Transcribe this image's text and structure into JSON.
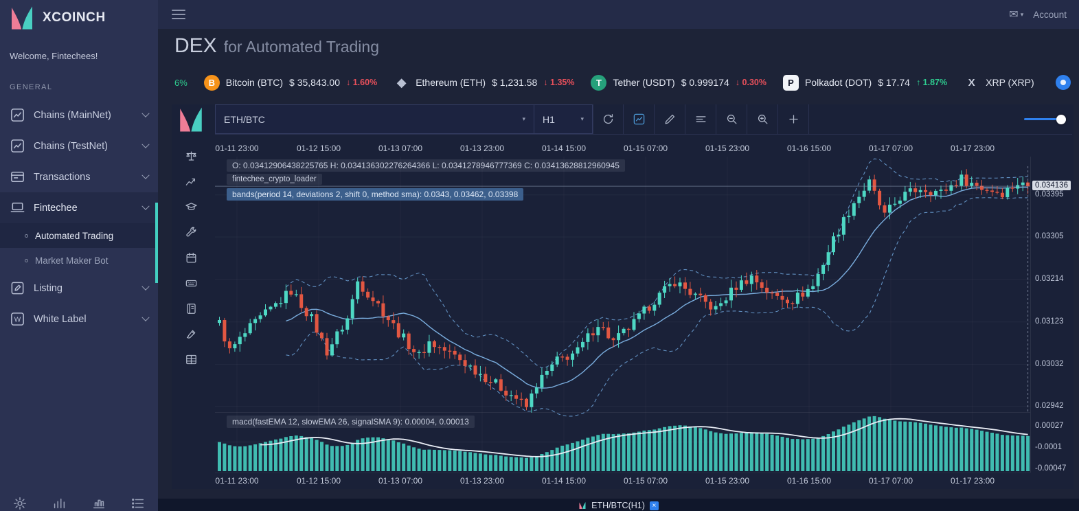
{
  "brand": {
    "name": "XCOINCH",
    "welcome": "Welcome, Fintechees!"
  },
  "topbar": {
    "account_label": "Account"
  },
  "sidebar": {
    "section_label": "GENERAL",
    "items": [
      {
        "label": "Chains (MainNet)",
        "icon": "chart-line-icon",
        "expandable": true
      },
      {
        "label": "Chains (TestNet)",
        "icon": "chart-line-icon",
        "expandable": true
      },
      {
        "label": "Transactions",
        "icon": "card-icon",
        "expandable": true
      },
      {
        "label": "Fintechee",
        "icon": "laptop-icon",
        "expandable": true,
        "active": true,
        "children": [
          {
            "label": "Automated Trading",
            "active": true
          },
          {
            "label": "Market Maker Bot"
          }
        ]
      },
      {
        "label": "Listing",
        "icon": "compose-icon",
        "expandable": true
      },
      {
        "label": "White Label",
        "icon": "w-icon",
        "expandable": true
      }
    ],
    "footer_icons": [
      "gear-icon",
      "signal-bars-icon",
      "chart-columns-icon",
      "list-icon"
    ]
  },
  "page": {
    "title_primary": "DEX",
    "title_secondary": "for Automated Trading"
  },
  "ticker": {
    "lead_change": "6%",
    "items": [
      {
        "symbol": "BTC",
        "name": "Bitcoin (BTC)",
        "price": "$ 35,843.00",
        "change": "1.60%",
        "direction": "down"
      },
      {
        "symbol": "ETH",
        "name": "Ethereum (ETH)",
        "price": "$ 1,231.58",
        "change": "1.35%",
        "direction": "down"
      },
      {
        "symbol": "USDT",
        "name": "Tether (USDT)",
        "price": "$ 0.999174",
        "change": "0.30%",
        "direction": "down"
      },
      {
        "symbol": "DOT",
        "name": "Polkadot (DOT)",
        "price": "$ 17.74",
        "change": "1.87%",
        "direction": "up"
      },
      {
        "symbol": "XRP",
        "name": "XRP (XRP)",
        "price": "",
        "change": "",
        "direction": "none"
      }
    ]
  },
  "chart_toolbar": {
    "symbol_select": "ETH/BTC",
    "timeframe_select": "H1",
    "buttons": [
      {
        "icon": "refresh-icon"
      },
      {
        "icon": "chart-line-icon",
        "active": true
      },
      {
        "icon": "pencil-icon"
      },
      {
        "icon": "indicator-lines-icon"
      },
      {
        "icon": "zoom-out-icon"
      },
      {
        "icon": "zoom-in-icon"
      },
      {
        "icon": "plus-icon"
      }
    ]
  },
  "side_tools": [
    "balance-scale-icon",
    "trend-icon",
    "graduation-cap-icon",
    "wrench-icon",
    "calendar-icon",
    "keyboard-icon",
    "journal-icon",
    "brush-icon",
    "table-icon"
  ],
  "chart_overlays": {
    "ohlc": "O: 0.03412906438225765 H: 0.034136302276264366 L: 0.0341278946777369 C: 0.03413628812960945",
    "loader": "fintechee_crypto_loader",
    "bands": "bands(period 14, deviations 2, shift 0, method sma): 0.0343, 0.03462, 0.03398",
    "macd": "macd(fastEMA 12, slowEMA 26, signalSMA 9): 0.00004, 0.00013"
  },
  "chart_data": {
    "type": "candlestick",
    "symbol": "ETH/BTC",
    "timeframe": "H1",
    "x_labels": [
      "01-11 23:00",
      "01-12 15:00",
      "01-13 07:00",
      "01-13 23:00",
      "01-14 15:00",
      "01-15 07:00",
      "01-15 23:00",
      "01-16 15:00",
      "01-17 07:00",
      "01-17 23:00"
    ],
    "y_ticks": [
      "0.03395",
      "0.03305",
      "0.03214",
      "0.03123",
      "0.03032",
      "0.02942"
    ],
    "macd_ticks": [
      "0.00027",
      "-0.0001",
      "-0.00047"
    ],
    "current_price": "0.034136",
    "num_candles": 159,
    "close_anchors": [
      [
        0,
        0.0312
      ],
      [
        2,
        0.0306
      ],
      [
        6,
        0.0311
      ],
      [
        11,
        0.0316
      ],
      [
        14,
        0.0319
      ],
      [
        18,
        0.0313
      ],
      [
        21,
        0.0306
      ],
      [
        25,
        0.0313
      ],
      [
        27,
        0.0321
      ],
      [
        31,
        0.0316
      ],
      [
        35,
        0.031
      ],
      [
        39,
        0.0305
      ],
      [
        41,
        0.0308
      ],
      [
        46,
        0.0305
      ],
      [
        50,
        0.0302
      ],
      [
        54,
        0.0299
      ],
      [
        58,
        0.0296
      ],
      [
        60,
        0.0294
      ],
      [
        62,
        0.0299
      ],
      [
        66,
        0.0304
      ],
      [
        70,
        0.0306
      ],
      [
        74,
        0.0312
      ],
      [
        77,
        0.0308
      ],
      [
        81,
        0.0312
      ],
      [
        85,
        0.0317
      ],
      [
        89,
        0.0321
      ],
      [
        94,
        0.0317
      ],
      [
        97,
        0.0315
      ],
      [
        101,
        0.032
      ],
      [
        104,
        0.0322
      ],
      [
        108,
        0.0318
      ],
      [
        112,
        0.0317
      ],
      [
        116,
        0.032
      ],
      [
        120,
        0.033
      ],
      [
        124,
        0.0338
      ],
      [
        127,
        0.0342
      ],
      [
        130,
        0.0335
      ],
      [
        133,
        0.0339
      ],
      [
        137,
        0.0341
      ],
      [
        141,
        0.034
      ],
      [
        145,
        0.0343
      ],
      [
        149,
        0.0341
      ],
      [
        153,
        0.034
      ],
      [
        156,
        0.0342
      ],
      [
        158,
        0.034136
      ]
    ],
    "bands": {
      "period": 14,
      "deviations": 2,
      "shift": 0,
      "method": "sma",
      "values": [
        0.0343,
        0.03462,
        0.03398
      ]
    },
    "macd": {
      "fastEMA": 12,
      "slowEMA": 26,
      "signalSMA": 9,
      "values": [
        4e-05,
        0.00013
      ]
    },
    "value_range": [
      0.0293,
      0.03477
    ],
    "macd_range": [
      -0.00053,
      0.00052
    ]
  },
  "bottom_tab": {
    "label": "ETH/BTC(H1)"
  }
}
